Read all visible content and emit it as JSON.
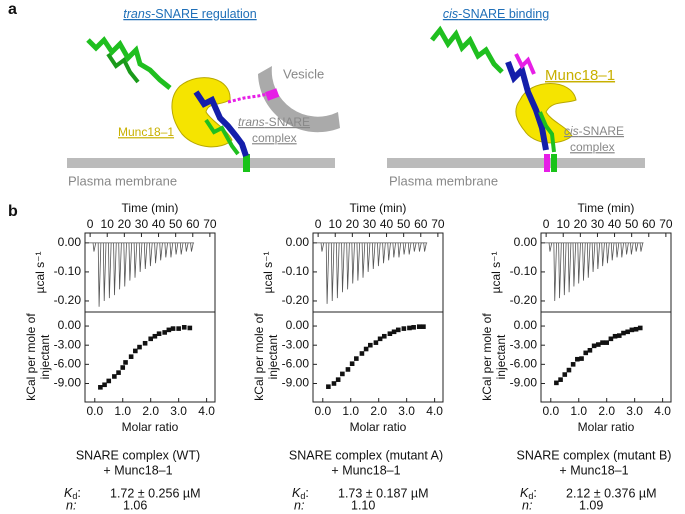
{
  "panel_labels": [
    "a",
    "b"
  ],
  "diagrams": [
    {
      "title": {
        "italic": "trans",
        "rest": "-SNARE regulation"
      },
      "vesicle": "Vesicle",
      "protein": "Munc18–1",
      "complex": {
        "italic": "trans",
        "rest": "-SNARE",
        "line2": "complex"
      },
      "membrane": "Plasma membrane"
    },
    {
      "title": {
        "italic": "cis",
        "rest": "-SNARE binding"
      },
      "protein": "Munc18–1",
      "complex": {
        "italic": "cis",
        "rest": "-SNARE",
        "line2": "complex"
      },
      "membrane": "Plasma membrane"
    }
  ],
  "chart_data": [
    {
      "type": "spikes",
      "x_label": "Time (min)",
      "y_label": "µcal s⁻¹",
      "color": "#555",
      "x": [
        2,
        5,
        8,
        11,
        14,
        17,
        20,
        23,
        26,
        29,
        32,
        35,
        38,
        41,
        44,
        47,
        50,
        53,
        56,
        59
      ],
      "values": [
        -0.03,
        -0.22,
        -0.2,
        -0.19,
        -0.18,
        -0.16,
        -0.15,
        -0.13,
        -0.12,
        -0.1,
        -0.09,
        -0.08,
        -0.07,
        -0.06,
        -0.05,
        -0.05,
        -0.04,
        -0.04,
        -0.03,
        -0.03
      ],
      "xlim": [
        -3,
        73
      ],
      "xticks": [
        0,
        10,
        20,
        30,
        40,
        50,
        60,
        70
      ],
      "ylim": [
        -0.238,
        0.034
      ],
      "yticks": [
        {
          "value": 0,
          "label": "0.00"
        },
        {
          "value": -0.1,
          "label": "-0.10"
        },
        {
          "value": -0.2,
          "label": "-0.20"
        }
      ]
    },
    {
      "type": "scatter",
      "x_label": "Molar ratio",
      "y_label": [
        "kCal per mole of",
        "injectant"
      ],
      "color": "#111",
      "x": [
        0.2,
        0.35,
        0.5,
        0.7,
        0.85,
        1.0,
        1.1,
        1.3,
        1.45,
        1.6,
        1.8,
        2.0,
        2.15,
        2.3,
        2.5,
        2.65,
        2.8,
        3.0,
        3.2,
        3.4
      ],
      "values": [
        -9.6,
        -9.2,
        -8.6,
        -7.9,
        -7.3,
        -6.5,
        -5.7,
        -4.8,
        -3.9,
        -3.3,
        -2.7,
        -2.0,
        -1.6,
        -1.2,
        -1.0,
        -0.6,
        -0.4,
        -0.4,
        -0.2,
        -0.3
      ],
      "xlim": [
        -0.35,
        4.3
      ],
      "xticks": [
        {
          "value": 0,
          "label": "0.0"
        },
        {
          "value": 1,
          "label": "1.0"
        },
        {
          "value": 2,
          "label": "2.0"
        },
        {
          "value": 3,
          "label": "3.0"
        },
        {
          "value": 4,
          "label": "4.0"
        }
      ],
      "ylim": [
        -11.9,
        2.2
      ],
      "yticks": [
        {
          "value": 0,
          "label": "0.00"
        },
        {
          "value": -3,
          "label": "-3.00"
        },
        {
          "value": -6,
          "label": "-6.00"
        },
        {
          "value": -9,
          "label": "-9.00"
        }
      ]
    },
    {
      "type": "spikes",
      "x_label": "Time (min)",
      "y_label": "µcal s⁻¹",
      "color": "#555",
      "x": [
        2,
        5,
        8,
        11,
        14,
        17,
        20,
        23,
        26,
        29,
        32,
        35,
        38,
        41,
        44,
        47,
        50,
        53,
        56,
        59,
        62
      ],
      "values": [
        -0.03,
        -0.21,
        -0.2,
        -0.19,
        -0.17,
        -0.16,
        -0.14,
        -0.13,
        -0.12,
        -0.1,
        -0.09,
        -0.08,
        -0.07,
        -0.06,
        -0.05,
        -0.05,
        -0.04,
        -0.04,
        -0.03,
        -0.03,
        -0.03
      ],
      "xlim": [
        -3,
        73
      ],
      "xticks": [
        0,
        10,
        20,
        30,
        40,
        50,
        60,
        70
      ],
      "ylim": [
        -0.238,
        0.034
      ],
      "yticks": [
        {
          "value": 0,
          "label": "0.00"
        },
        {
          "value": -0.1,
          "label": "-0.10"
        },
        {
          "value": -0.2,
          "label": "-0.20"
        }
      ]
    },
    {
      "type": "scatter",
      "x_label": "Molar ratio",
      "y_label": [
        "kCal per mole of",
        "injectant"
      ],
      "color": "#111",
      "x": [
        0.2,
        0.4,
        0.55,
        0.7,
        0.9,
        1.05,
        1.2,
        1.4,
        1.55,
        1.7,
        1.9,
        2.05,
        2.2,
        2.4,
        2.55,
        2.7,
        2.9,
        3.1,
        3.25,
        3.45,
        3.6
      ],
      "values": [
        -9.5,
        -9.0,
        -8.4,
        -7.5,
        -6.8,
        -5.9,
        -5.1,
        -4.3,
        -3.6,
        -3.0,
        -2.6,
        -2.0,
        -1.6,
        -1.2,
        -0.9,
        -0.6,
        -0.4,
        -0.3,
        -0.2,
        -0.1,
        -0.1
      ],
      "xlim": [
        -0.35,
        4.3
      ],
      "xticks": [
        {
          "value": 0,
          "label": "0.0"
        },
        {
          "value": 1,
          "label": "1.0"
        },
        {
          "value": 2,
          "label": "2.0"
        },
        {
          "value": 3,
          "label": "3.0"
        },
        {
          "value": 4,
          "label": "4.0"
        }
      ],
      "ylim": [
        -11.9,
        2.2
      ],
      "yticks": [
        {
          "value": 0,
          "label": "0.00"
        },
        {
          "value": -3,
          "label": "-3.00"
        },
        {
          "value": -6,
          "label": "-6.00"
        },
        {
          "value": -9,
          "label": "-9.00"
        }
      ]
    },
    {
      "type": "spikes",
      "x_label": "Time (min)",
      "y_label": "µcal s⁻¹",
      "color": "#555",
      "x": [
        2,
        4.8,
        7.6,
        10.4,
        13.2,
        16,
        18.8,
        21.6,
        24.4,
        27.2,
        30,
        32.8,
        35.6,
        38.4,
        41.2,
        44,
        46.8,
        49.6,
        52.4,
        55.2
      ],
      "values": [
        -0.03,
        -0.2,
        -0.19,
        -0.18,
        -0.17,
        -0.15,
        -0.14,
        -0.13,
        -0.12,
        -0.1,
        -0.09,
        -0.08,
        -0.07,
        -0.06,
        -0.05,
        -0.05,
        -0.04,
        -0.04,
        -0.03,
        -0.03
      ],
      "xlim": [
        -3,
        73
      ],
      "xticks": [
        0,
        10,
        20,
        30,
        40,
        50,
        60,
        70
      ],
      "ylim": [
        -0.238,
        0.034
      ],
      "yticks": [
        {
          "value": 0,
          "label": "0.00"
        },
        {
          "value": -0.1,
          "label": "-0.10"
        },
        {
          "value": -0.2,
          "label": "-0.20"
        }
      ]
    },
    {
      "type": "scatter",
      "x_label": "Molar ratio",
      "y_label": [
        "kCal per mole of",
        "injectant"
      ],
      "color": "#111",
      "x": [
        0.2,
        0.35,
        0.5,
        0.65,
        0.8,
        0.95,
        1.1,
        1.25,
        1.4,
        1.55,
        1.7,
        1.85,
        2.0,
        2.15,
        2.3,
        2.45,
        2.6,
        2.75,
        2.9,
        3.05,
        3.2
      ],
      "values": [
        -8.9,
        -8.4,
        -7.6,
        -6.9,
        -6.0,
        -5.2,
        -5.1,
        -4.2,
        -3.8,
        -3.1,
        -2.9,
        -2.6,
        -2.6,
        -2.0,
        -1.6,
        -1.5,
        -1.1,
        -0.9,
        -0.6,
        -0.5,
        -0.3
      ],
      "xlim": [
        -0.35,
        4.3
      ],
      "xticks": [
        {
          "value": 0,
          "label": "0.0"
        },
        {
          "value": 1,
          "label": "1.0"
        },
        {
          "value": 2,
          "label": "2.0"
        },
        {
          "value": 3,
          "label": "3.0"
        },
        {
          "value": 4,
          "label": "4.0"
        }
      ],
      "ylim": [
        -11.9,
        2.2
      ],
      "yticks": [
        {
          "value": 0,
          "label": "0.00"
        },
        {
          "value": -3,
          "label": "-3.00"
        },
        {
          "value": -6,
          "label": "-6.00"
        },
        {
          "value": -9,
          "label": "-9.00"
        }
      ]
    }
  ],
  "samples": [
    {
      "name": [
        "SNARE complex (WT)",
        "+ Munc18–1"
      ],
      "kd_symbol": "K",
      "kd_subscript": "d",
      "kd_suffix": ":",
      "kd_value": "1.72 ± 0.256 µM",
      "n_label": "n:",
      "n_value": "1.06"
    },
    {
      "name": [
        "SNARE complex (mutant A)",
        "+ Munc18–1"
      ],
      "kd_symbol": "K",
      "kd_subscript": "d",
      "kd_suffix": ":",
      "kd_value": "1.73 ± 0.187 µM",
      "n_label": "n:",
      "n_value": "1.10"
    },
    {
      "name": [
        "SNARE complex (mutant B)",
        "+ Munc18–1"
      ],
      "kd_symbol": "K",
      "kd_subscript": "d",
      "kd_suffix": ":",
      "kd_value": "2.12 ± 0.376 µM",
      "n_label": "n:",
      "n_value": "1.09"
    }
  ]
}
